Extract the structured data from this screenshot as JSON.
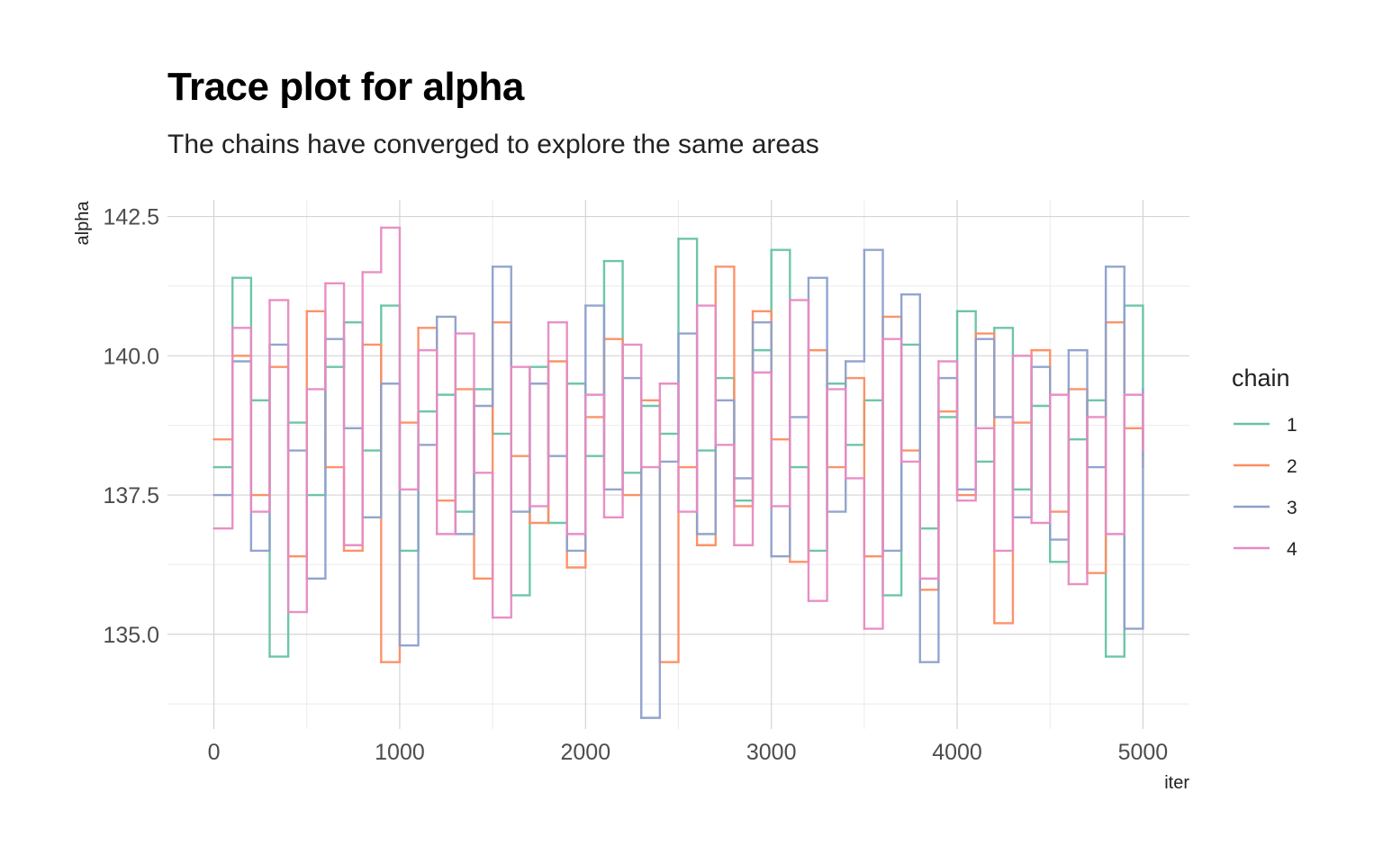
{
  "chart_data": {
    "type": "line",
    "title": "Trace plot for alpha",
    "subtitle": "The chains have converged to explore the same areas",
    "xlabel": "iter",
    "ylabel": "alpha",
    "xlim": [
      -250,
      5250
    ],
    "ylim": [
      133.3,
      142.8
    ],
    "x_ticks": [
      0,
      1000,
      2000,
      3000,
      4000,
      5000
    ],
    "x_tick_labels": [
      "0",
      "1000",
      "2000",
      "3000",
      "4000",
      "5000"
    ],
    "y_ticks": [
      135.0,
      137.5,
      140.0,
      142.5
    ],
    "y_tick_labels": [
      "135.0",
      "137.5",
      "140.0",
      "142.5"
    ],
    "grid": true,
    "legend": {
      "title": "chain",
      "position": "right"
    },
    "series": [
      {
        "name": "1",
        "color": "#66c2a5",
        "x": [
          0,
          100,
          200,
          300,
          400,
          500,
          600,
          700,
          800,
          900,
          1000,
          1100,
          1200,
          1300,
          1400,
          1500,
          1600,
          1700,
          1800,
          1900,
          2000,
          2100,
          2200,
          2300,
          2400,
          2500,
          2600,
          2700,
          2800,
          2900,
          3000,
          3100,
          3200,
          3300,
          3400,
          3500,
          3600,
          3700,
          3800,
          3900,
          4000,
          4100,
          4200,
          4300,
          4400,
          4500,
          4600,
          4700,
          4800,
          4900,
          5000
        ],
        "values": [
          138.0,
          141.4,
          139.2,
          134.6,
          138.8,
          137.5,
          139.8,
          140.6,
          138.3,
          140.9,
          136.5,
          139.0,
          139.3,
          137.2,
          139.4,
          138.6,
          135.7,
          139.8,
          137.0,
          139.5,
          138.2,
          141.7,
          137.9,
          139.1,
          138.6,
          142.1,
          138.3,
          139.6,
          137.4,
          140.1,
          141.9,
          138.0,
          136.5,
          139.5,
          138.4,
          139.2,
          135.7,
          140.2,
          136.9,
          138.9,
          140.8,
          138.1,
          140.5,
          137.6,
          139.1,
          136.3,
          138.5,
          139.2,
          134.6,
          140.9,
          138.2
        ]
      },
      {
        "name": "2",
        "color": "#fc8d62",
        "x": [
          0,
          100,
          200,
          300,
          400,
          500,
          600,
          700,
          800,
          900,
          1000,
          1100,
          1200,
          1300,
          1400,
          1500,
          1600,
          1700,
          1800,
          1900,
          2000,
          2100,
          2200,
          2300,
          2400,
          2500,
          2600,
          2700,
          2800,
          2900,
          3000,
          3100,
          3200,
          3300,
          3400,
          3500,
          3600,
          3700,
          3800,
          3900,
          4000,
          4100,
          4200,
          4300,
          4400,
          4500,
          4600,
          4700,
          4800,
          4900,
          5000
        ],
        "values": [
          138.5,
          140.0,
          137.5,
          139.8,
          136.4,
          140.8,
          138.0,
          136.5,
          140.2,
          134.5,
          138.8,
          140.5,
          137.4,
          139.4,
          136.0,
          140.6,
          138.2,
          137.0,
          139.9,
          136.2,
          138.9,
          140.3,
          137.5,
          139.2,
          134.5,
          138.0,
          136.6,
          141.6,
          137.3,
          140.8,
          138.5,
          136.3,
          140.1,
          138.0,
          139.6,
          136.4,
          140.7,
          138.3,
          135.8,
          139.0,
          137.5,
          140.4,
          135.2,
          138.8,
          140.1,
          137.2,
          139.4,
          136.1,
          140.6,
          138.7,
          138.0
        ]
      },
      {
        "name": "3",
        "color": "#8da0cb",
        "x": [
          0,
          100,
          200,
          300,
          400,
          500,
          600,
          700,
          800,
          900,
          1000,
          1100,
          1200,
          1300,
          1400,
          1500,
          1600,
          1700,
          1800,
          1900,
          2000,
          2100,
          2200,
          2300,
          2400,
          2500,
          2600,
          2700,
          2800,
          2900,
          3000,
          3100,
          3200,
          3300,
          3400,
          3500,
          3600,
          3700,
          3800,
          3900,
          4000,
          4100,
          4200,
          4300,
          4400,
          4500,
          4600,
          4700,
          4800,
          4900,
          5000
        ],
        "values": [
          137.5,
          139.9,
          136.5,
          140.2,
          138.3,
          136.0,
          140.3,
          138.7,
          137.1,
          139.5,
          134.8,
          138.4,
          140.7,
          136.8,
          139.1,
          141.6,
          137.2,
          139.5,
          138.2,
          136.5,
          140.9,
          137.6,
          139.6,
          133.5,
          138.1,
          140.4,
          136.8,
          139.2,
          137.8,
          140.6,
          136.4,
          138.9,
          141.4,
          137.2,
          139.9,
          141.9,
          136.5,
          141.1,
          134.5,
          139.6,
          137.6,
          140.3,
          138.9,
          137.1,
          139.8,
          136.7,
          140.1,
          138.0,
          141.6,
          135.1,
          139.4
        ]
      },
      {
        "name": "4",
        "color": "#e78ac3",
        "x": [
          0,
          100,
          200,
          300,
          400,
          500,
          600,
          700,
          800,
          900,
          1000,
          1100,
          1200,
          1300,
          1400,
          1500,
          1600,
          1700,
          1800,
          1900,
          2000,
          2100,
          2200,
          2300,
          2400,
          2500,
          2600,
          2700,
          2800,
          2900,
          3000,
          3100,
          3200,
          3300,
          3400,
          3500,
          3600,
          3700,
          3800,
          3900,
          4000,
          4100,
          4200,
          4300,
          4400,
          4500,
          4600,
          4700,
          4800,
          4900,
          5000
        ],
        "values": [
          136.9,
          140.5,
          137.2,
          141.0,
          135.4,
          139.4,
          141.3,
          136.6,
          141.5,
          142.3,
          137.6,
          140.1,
          136.8,
          140.4,
          137.9,
          135.3,
          139.8,
          137.3,
          140.6,
          136.8,
          139.3,
          137.1,
          140.2,
          138.0,
          139.5,
          137.2,
          140.9,
          138.4,
          136.6,
          139.7,
          137.3,
          141.0,
          135.6,
          139.4,
          137.8,
          135.1,
          140.3,
          138.1,
          136.0,
          139.9,
          137.4,
          138.7,
          136.5,
          140.0,
          137.0,
          139.3,
          135.9,
          138.9,
          136.8,
          139.3,
          138.3
        ]
      }
    ]
  }
}
